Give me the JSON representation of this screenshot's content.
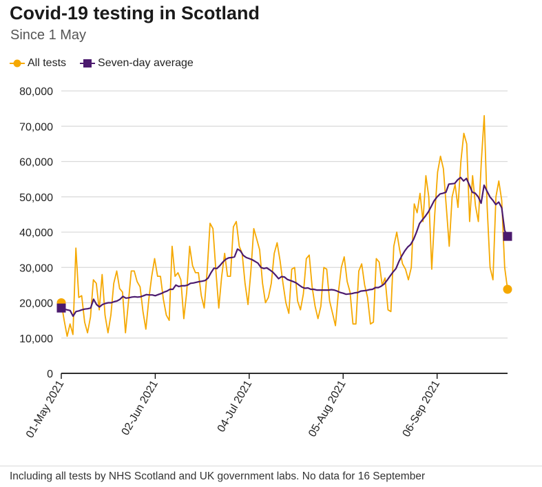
{
  "header": {
    "title": "Covid-19 testing in Scotland",
    "subtitle": "Since 1 May"
  },
  "footer": {
    "note": "Including all tests by NHS Scotland and UK government labs. No data for 16 September"
  },
  "colors": {
    "all_tests": "#f5a800",
    "average": "#4b1a6e",
    "grid": "#d9d9d9",
    "axis": "#111111"
  },
  "chart_data": {
    "type": "line",
    "ylim": [
      0,
      80000
    ],
    "yticks": [
      0,
      10000,
      20000,
      30000,
      40000,
      50000,
      60000,
      70000,
      80000
    ],
    "ytick_labels": [
      "0",
      "10,000",
      "20,000",
      "30,000",
      "40,000",
      "50,000",
      "60,000",
      "70,000",
      "80,000"
    ],
    "x_range": [
      "2021-05-01",
      "2021-09-30"
    ],
    "xticks": [
      "2021-05-01",
      "2021-06-02",
      "2021-07-04",
      "2021-08-05",
      "2021-09-06"
    ],
    "xtick_labels": [
      "01-May 2021",
      "02-Jun 2021",
      "04-Jul 2021",
      "05-Aug 2021",
      "06-Sep 2021"
    ],
    "series": [
      {
        "name": "All tests",
        "marker": "circle",
        "start_date": "2021-05-01",
        "end_date": "2021-09-30",
        "values": [
          20000,
          15000,
          10500,
          14000,
          11000,
          35500,
          21500,
          22000,
          14500,
          11500,
          16000,
          26500,
          25500,
          18000,
          28000,
          16500,
          11500,
          16500,
          25500,
          29000,
          24000,
          23000,
          11500,
          20000,
          29000,
          29000,
          26000,
          24500,
          17500,
          12500,
          21000,
          27500,
          32500,
          27500,
          27500,
          21000,
          16500,
          15000,
          36000,
          27500,
          28500,
          26500,
          15500,
          23000,
          36000,
          30500,
          28500,
          28500,
          22000,
          18500,
          29000,
          42500,
          41000,
          29000,
          18500,
          27500,
          34000,
          27500,
          27500,
          41500,
          43000,
          36000,
          34000,
          25500,
          19500,
          29000,
          41000,
          38000,
          35000,
          25500,
          20000,
          21500,
          25500,
          34000,
          37000,
          32000,
          25500,
          20000,
          17000,
          29500,
          30000,
          20500,
          18000,
          22500,
          32500,
          33500,
          24500,
          19000,
          15500,
          19000,
          30000,
          29500,
          20500,
          17000,
          13500,
          23000,
          30000,
          33000,
          26000,
          23000,
          14000,
          14000,
          29000,
          31000,
          25000,
          21500,
          14000,
          14500,
          32500,
          31500,
          25000,
          27000,
          18000,
          17500,
          36000,
          40000,
          35000,
          31000,
          29500,
          26500,
          30000,
          48000,
          45500,
          51000,
          43000,
          56000,
          50000,
          29500,
          44500,
          57000,
          61500,
          58000,
          47000,
          36000,
          50000,
          53500,
          47000,
          60000,
          68000,
          65000,
          43000,
          56000,
          47500,
          43000,
          60000,
          73000,
          47000,
          30000,
          26500,
          50000,
          54500,
          49000,
          30000,
          23800
        ]
      },
      {
        "name": "Seven-day average",
        "marker": "square",
        "start_date": "2021-05-01",
        "end_date": "2021-09-30",
        "values": [
          18500,
          18200,
          18000,
          17800,
          16200,
          17500,
          17700,
          18000,
          18200,
          18300,
          18500,
          21000,
          19500,
          18800,
          19500,
          19800,
          20000,
          20000,
          20300,
          20500,
          21000,
          21800,
          21300,
          21400,
          21600,
          21700,
          21600,
          21700,
          22000,
          22300,
          22200,
          22200,
          22000,
          22300,
          22600,
          23000,
          23300,
          23800,
          23800,
          25000,
          24600,
          24800,
          24800,
          25000,
          25500,
          25600,
          25800,
          26000,
          26100,
          26300,
          27000,
          28500,
          29800,
          29700,
          30500,
          31500,
          32300,
          32700,
          32800,
          33000,
          35200,
          34700,
          33400,
          32800,
          32500,
          32200,
          31700,
          31200,
          30000,
          29700,
          29900,
          29300,
          28700,
          27800,
          26800,
          27400,
          27300,
          26600,
          26300,
          26000,
          25600,
          25000,
          24400,
          24100,
          24200,
          23800,
          23800,
          23600,
          23600,
          23600,
          23600,
          23600,
          23700,
          23600,
          23300,
          22900,
          22700,
          22400,
          22500,
          22600,
          22800,
          22900,
          23300,
          23400,
          23500,
          23700,
          23800,
          24300,
          24300,
          24700,
          25300,
          26400,
          27600,
          28700,
          29700,
          31700,
          33300,
          34700,
          35800,
          36500,
          38000,
          40000,
          42400,
          43500,
          44500,
          45700,
          47300,
          48900,
          50000,
          50800,
          51000,
          51300,
          53600,
          53700,
          53800,
          54800,
          55500,
          54500,
          55200,
          53300,
          51300,
          51000,
          50000,
          48200,
          53300,
          51600,
          50000,
          49000,
          47800,
          48500,
          46900,
          40500,
          38800
        ]
      }
    ],
    "grid": true,
    "legend": "top-left"
  }
}
